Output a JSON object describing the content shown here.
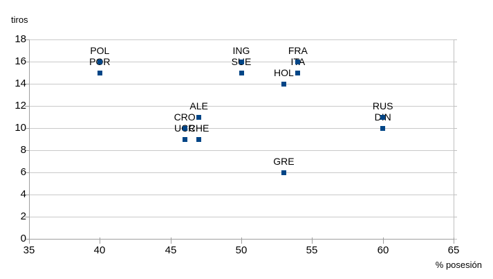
{
  "chart_data": {
    "type": "scatter",
    "title": "",
    "xlabel": "% posesión",
    "ylabel": "tiros",
    "xlim": [
      35,
      65
    ],
    "ylim": [
      0,
      18
    ],
    "x_ticks": [
      35,
      40,
      45,
      50,
      55,
      60,
      65
    ],
    "y_ticks": [
      0,
      2,
      4,
      6,
      8,
      10,
      12,
      14,
      16,
      18
    ],
    "grid": "horizontal-only",
    "legend": "none",
    "marker_shape": "square",
    "marker_color": "#004586",
    "gridline_color": "#c9c9c9",
    "axis_color": "#9e9e9e",
    "label_color": "#000000",
    "points": [
      {
        "label": "POL",
        "x": 40,
        "y": 16
      },
      {
        "label": "POR",
        "x": 40,
        "y": 15
      },
      {
        "label": "ING",
        "x": 50,
        "y": 16
      },
      {
        "label": "SUE",
        "x": 50,
        "y": 15
      },
      {
        "label": "FRA",
        "x": 54,
        "y": 16
      },
      {
        "label": "ITA",
        "x": 54,
        "y": 15
      },
      {
        "label": "HOL",
        "x": 53,
        "y": 14
      },
      {
        "label": "ALE",
        "x": 47,
        "y": 11
      },
      {
        "label": "CRO",
        "x": 46,
        "y": 10
      },
      {
        "label": "UCR",
        "x": 46,
        "y": 9
      },
      {
        "label": "CHE",
        "x": 47,
        "y": 9
      },
      {
        "label": "RUS",
        "x": 60,
        "y": 11
      },
      {
        "label": "DIN",
        "x": 60,
        "y": 10
      },
      {
        "label": "GRE",
        "x": 53,
        "y": 6
      }
    ]
  }
}
